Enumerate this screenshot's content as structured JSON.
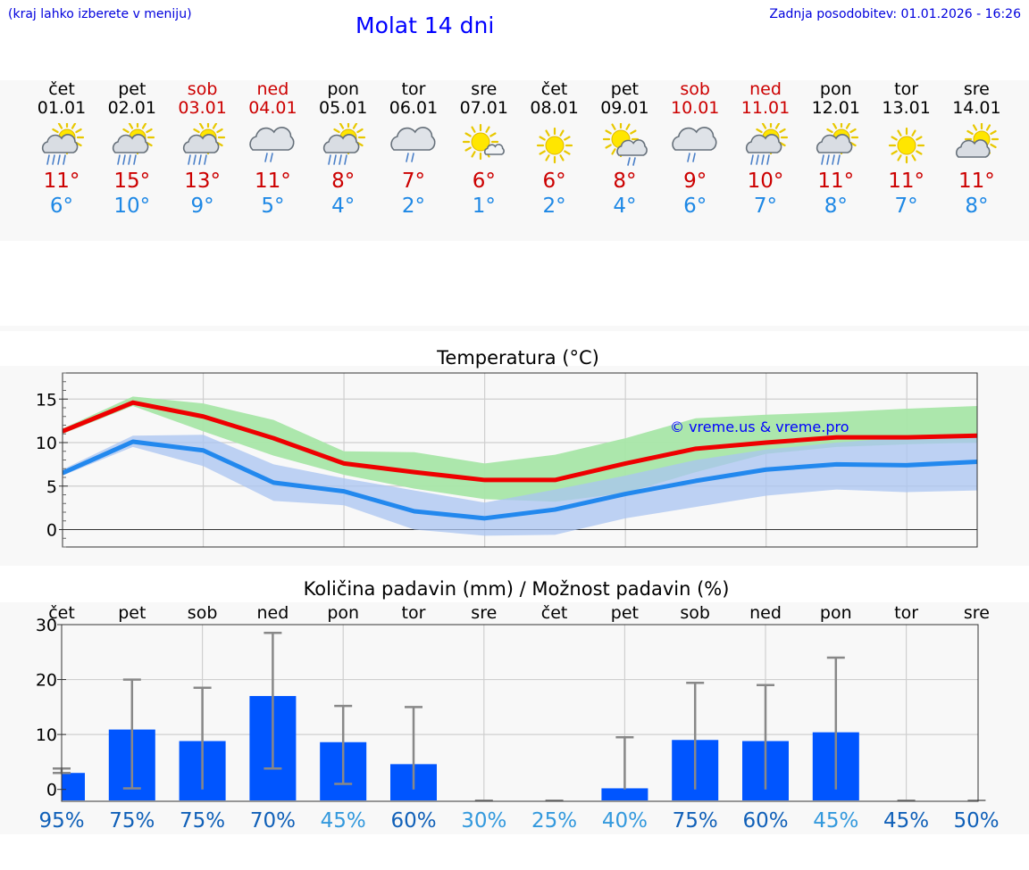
{
  "header": {
    "hint": "(kraj lahko izberete v meniju)",
    "title": "Molat 14 dni",
    "updated": "Zadnja posodobitev: 01.01.2026 - 16:26"
  },
  "days": [
    {
      "name": "čet",
      "date": "01.01",
      "weekend": false,
      "icon": "sun-cloud-rain-icon",
      "max": "11°",
      "min": "6°"
    },
    {
      "name": "pet",
      "date": "02.01",
      "weekend": false,
      "icon": "sun-cloud-rain-icon",
      "max": "15°",
      "min": "10°"
    },
    {
      "name": "sob",
      "date": "03.01",
      "weekend": true,
      "icon": "sun-cloud-rain-icon",
      "max": "13°",
      "min": "9°"
    },
    {
      "name": "ned",
      "date": "04.01",
      "weekend": true,
      "icon": "cloud-rain-icon",
      "max": "11°",
      "min": "5°"
    },
    {
      "name": "pon",
      "date": "05.01",
      "weekend": false,
      "icon": "sun-cloud-rain-icon",
      "max": "8°",
      "min": "4°"
    },
    {
      "name": "tor",
      "date": "06.01",
      "weekend": false,
      "icon": "cloud-rain-icon",
      "max": "7°",
      "min": "2°"
    },
    {
      "name": "sre",
      "date": "07.01",
      "weekend": false,
      "icon": "sun-small-cloud-icon",
      "max": "6°",
      "min": "1°"
    },
    {
      "name": "čet",
      "date": "08.01",
      "weekend": false,
      "icon": "sun-icon",
      "max": "6°",
      "min": "2°"
    },
    {
      "name": "pet",
      "date": "09.01",
      "weekend": false,
      "icon": "sun-cloud-drizzle-icon",
      "max": "8°",
      "min": "4°"
    },
    {
      "name": "sob",
      "date": "10.01",
      "weekend": true,
      "icon": "cloud-rain-icon",
      "max": "9°",
      "min": "6°"
    },
    {
      "name": "ned",
      "date": "11.01",
      "weekend": true,
      "icon": "sun-cloud-rain-icon",
      "max": "10°",
      "min": "7°"
    },
    {
      "name": "pon",
      "date": "12.01",
      "weekend": false,
      "icon": "sun-cloud-rain-icon",
      "max": "11°",
      "min": "8°"
    },
    {
      "name": "tor",
      "date": "13.01",
      "weekend": false,
      "icon": "sun-icon",
      "max": "11°",
      "min": "7°"
    },
    {
      "name": "sre",
      "date": "14.01",
      "weekend": false,
      "icon": "sun-cloud-icon",
      "max": "11°",
      "min": "8°"
    }
  ],
  "colors": {
    "max_line": "#ee0000",
    "min_line": "#2288ee",
    "max_band": "#a8e6a8",
    "min_band": "#aac4f2",
    "bar": "#0055ff",
    "whisker": "#888888",
    "pct_dark": "#1060b8",
    "pct_light": "#3399dd"
  },
  "chart_data": [
    {
      "type": "line",
      "title": "Temperatura (°C)",
      "watermark": "© vreme.us & vreme.pro",
      "ylim": [
        -2,
        18
      ],
      "yticks": [
        "0",
        "5",
        "10",
        "15"
      ],
      "x": [
        0,
        1,
        2,
        3,
        4,
        5,
        6,
        7,
        8,
        9,
        10,
        11,
        12,
        13
      ],
      "series": [
        {
          "name": "max",
          "values": [
            11.3,
            14.6,
            13.0,
            10.5,
            7.6,
            6.6,
            5.7,
            5.7,
            7.6,
            9.3,
            10.0,
            10.6,
            10.6,
            10.8
          ],
          "band_low": [
            11.0,
            14.2,
            11.3,
            8.5,
            6.3,
            4.7,
            3.5,
            3.2,
            4.2,
            6.6,
            8.7,
            9.5,
            9.8,
            10.0
          ],
          "band_high": [
            11.6,
            15.3,
            14.5,
            12.6,
            9.0,
            8.9,
            7.6,
            8.6,
            10.5,
            12.8,
            13.2,
            13.5,
            13.9,
            14.2
          ]
        },
        {
          "name": "min",
          "values": [
            6.5,
            10.1,
            9.1,
            5.4,
            4.4,
            2.1,
            1.3,
            2.3,
            4.1,
            5.6,
            6.9,
            7.5,
            7.4,
            7.8
          ],
          "band_low": [
            6.2,
            9.5,
            7.3,
            3.3,
            2.8,
            0.0,
            -0.7,
            -0.6,
            1.3,
            2.6,
            3.9,
            4.6,
            4.3,
            4.5
          ],
          "band_high": [
            6.9,
            10.8,
            10.9,
            7.5,
            5.9,
            4.5,
            3.1,
            4.6,
            6.2,
            8.0,
            9.2,
            10.0,
            10.6,
            10.8
          ]
        }
      ]
    },
    {
      "type": "bar",
      "title": "Količina padavin (mm) / Možnost padavin (%)",
      "ylim": [
        -2,
        30
      ],
      "yticks": [
        "0",
        "10",
        "20",
        "30"
      ],
      "categories": [
        "čet",
        "pet",
        "sob",
        "ned",
        "pon",
        "tor",
        "sre",
        "čet",
        "pet",
        "sob",
        "ned",
        "pon",
        "tor",
        "sre"
      ],
      "values": [
        3.0,
        10.9,
        8.8,
        17.0,
        8.6,
        4.6,
        0,
        0,
        0.2,
        9.0,
        8.8,
        10.4,
        0,
        0
      ],
      "err_low": [
        3.0,
        0.2,
        0,
        3.8,
        1.0,
        0,
        0,
        0,
        0,
        0,
        0,
        0,
        0,
        0
      ],
      "err_high": [
        3.8,
        20.0,
        18.5,
        28.5,
        15.2,
        15.0,
        0,
        0,
        9.5,
        19.4,
        19.0,
        24.0,
        0,
        0
      ],
      "probability": [
        "95%",
        "75%",
        "75%",
        "70%",
        "45%",
        "60%",
        "30%",
        "25%",
        "40%",
        "75%",
        "60%",
        "45%",
        "45%",
        "50%"
      ],
      "probability_light": [
        false,
        false,
        false,
        false,
        true,
        false,
        true,
        true,
        true,
        false,
        false,
        true,
        false,
        false
      ]
    }
  ]
}
